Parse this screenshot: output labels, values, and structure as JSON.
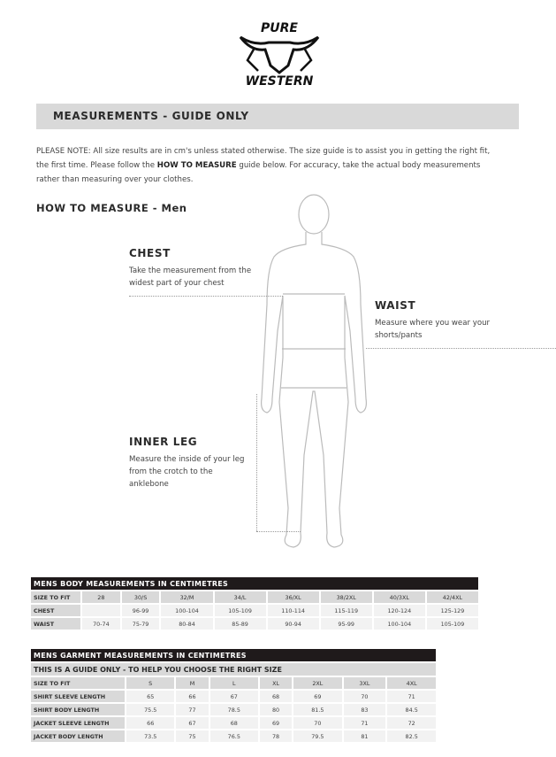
{
  "brand": {
    "logo_text_top": "PURE",
    "logo_text_bottom": "WESTERN"
  },
  "banner": {
    "title": "MEASUREMENTS - GUIDE ONLY"
  },
  "note": {
    "prefix": "PLEASE NOTE:  All size results are in cm's unless stated otherwise. The size guide is to assist you in getting the right fit, the first time. Please follow the ",
    "bold": "HOW TO MEASURE",
    "suffix": " guide below. For accuracy, take the actual body measurements rather than measuring over your clothes."
  },
  "howto": {
    "title": "HOW TO MEASURE - Men"
  },
  "labels": {
    "chest": {
      "title": "CHEST",
      "text": "Take the measurement from the widest part of your chest"
    },
    "waist": {
      "title": "WAIST",
      "text": "Measure where you wear your shorts/pants"
    },
    "inner_leg": {
      "title": "INNER LEG",
      "text": "Measure the inside of your leg from the crotch to the anklebone"
    }
  },
  "body_table": {
    "title": "MENS BODY MEASUREMENTS IN CENTIMETRES",
    "header": [
      "SIZE TO FIT",
      "28",
      "30/S",
      "32/M",
      "34/L",
      "36/XL",
      "38/2XL",
      "40/3XL",
      "42/4XL"
    ],
    "rows": [
      [
        "CHEST",
        "",
        "96-99",
        "100-104",
        "105-109",
        "110-114",
        "115-119",
        "120-124",
        "125-129"
      ],
      [
        "WAIST",
        "70-74",
        "75-79",
        "80-84",
        "85-89",
        "90-94",
        "95-99",
        "100-104",
        "105-109"
      ]
    ]
  },
  "garment_table": {
    "title": "MENS GARMENT MEASUREMENTS IN CENTIMETRES",
    "subtitle": "THIS IS A GUIDE ONLY - TO HELP YOU CHOOSE THE RIGHT SIZE",
    "header": [
      "SIZE TO FIT",
      "S",
      "M",
      "L",
      "XL",
      "2XL",
      "3XL",
      "4XL"
    ],
    "rows": [
      [
        "SHIRT SLEEVE LENGTH",
        "65",
        "66",
        "67",
        "68",
        "69",
        "70",
        "71"
      ],
      [
        "SHIRT BODY LENGTH",
        "75.5",
        "77",
        "78.5",
        "80",
        "81.5",
        "83",
        "84.5"
      ],
      [
        "JACKET SLEEVE LENGTH",
        "66",
        "67",
        "68",
        "69",
        "70",
        "71",
        "72"
      ],
      [
        "JACKET BODY LENGTH",
        "73.5",
        "75",
        "76.5",
        "78",
        "79.5",
        "81",
        "82.5"
      ]
    ]
  }
}
